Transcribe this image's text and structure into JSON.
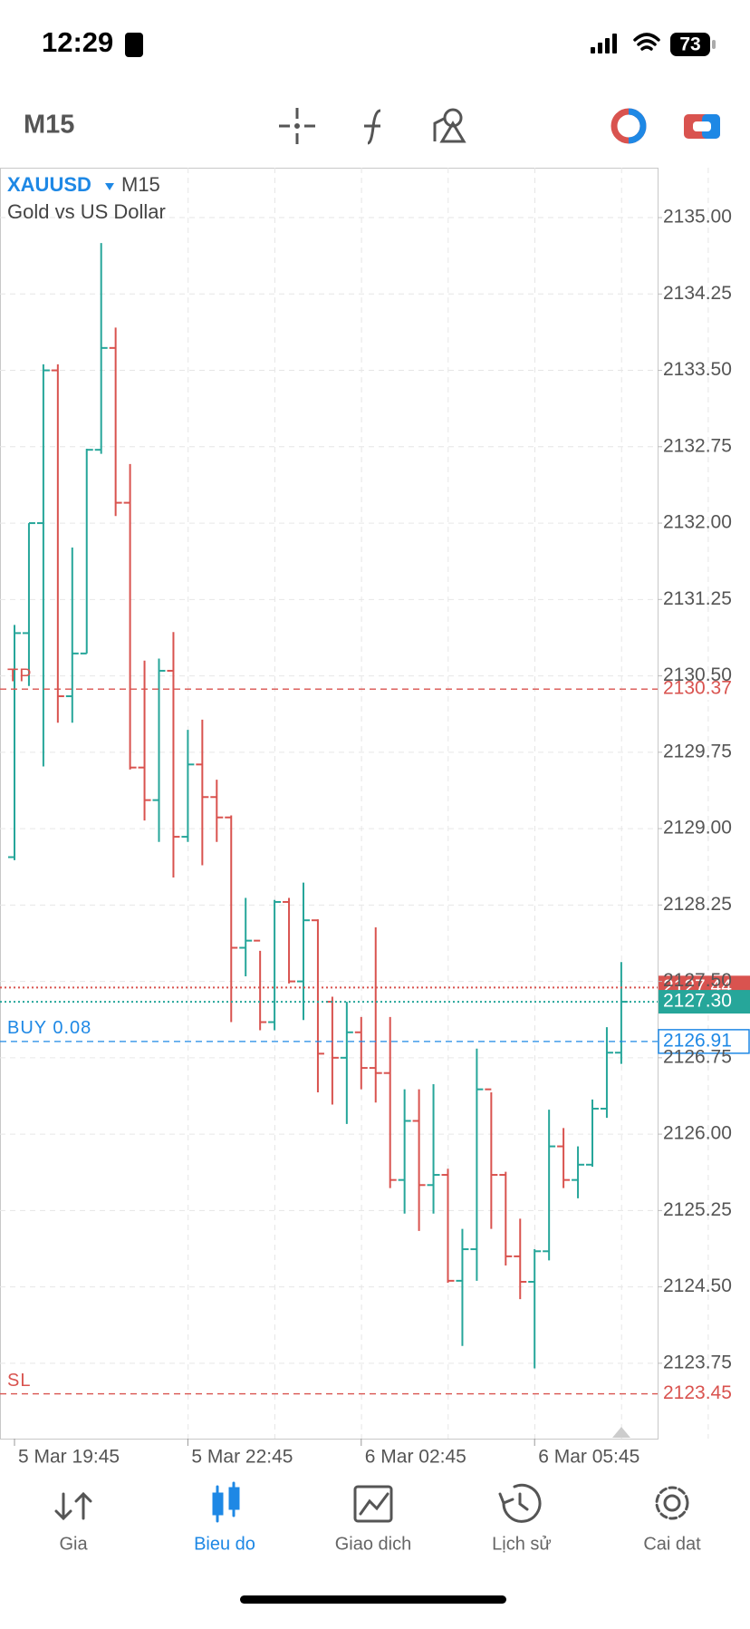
{
  "status_bar": {
    "time": "12:29",
    "battery": "73"
  },
  "toolbar": {
    "timeframe": "M15"
  },
  "chart_data": {
    "type": "ohlc",
    "symbol": "XAUUSD",
    "timeframe": "M15",
    "subtitle": "Gold vs US Dollar",
    "categories": [
      "5 Mar 19:45",
      null,
      null,
      null,
      null,
      null,
      null,
      null,
      null,
      null,
      null,
      null,
      "5 Mar 22:45",
      null,
      null,
      null,
      null,
      null,
      null,
      null,
      null,
      null,
      null,
      null,
      "6 Mar 02:45",
      null,
      null,
      null,
      null,
      null,
      null,
      null,
      null,
      null,
      null,
      null,
      "6 Mar 05:45",
      null,
      null,
      null,
      null,
      null,
      null
    ],
    "open": [
      2128.72,
      2130.92,
      2132.0,
      2133.5,
      2130.3,
      2130.72,
      2132.72,
      2133.72,
      2132.2,
      2129.6,
      2129.28,
      2130.55,
      2128.92,
      2129.63,
      2129.31,
      2129.11,
      2127.83,
      2127.9,
      2127.1,
      2128.28,
      2127.5,
      2128.1,
      2127.3,
      2126.75,
      2127.0,
      2126.65,
      2126.6,
      2125.55,
      2126.13,
      2125.5,
      2125.6,
      2124.56,
      2124.87,
      2126.44,
      2125.6,
      2124.8,
      2124.55,
      2124.85,
      2125.88,
      2125.55,
      2125.7,
      2126.25,
      2126.8
    ],
    "high": [
      2131.0,
      2132.0,
      2133.56,
      2133.56,
      2131.76,
      2132.73,
      2134.75,
      2133.92,
      2132.58,
      2130.65,
      2130.67,
      2130.93,
      2129.97,
      2130.07,
      2129.48,
      2129.13,
      2128.32,
      2127.8,
      2128.3,
      2128.32,
      2128.47,
      2128.11,
      2127.35,
      2127.3,
      2127.15,
      2128.03,
      2127.15,
      2126.44,
      2126.44,
      2126.49,
      2125.66,
      2125.07,
      2126.84,
      2126.41,
      2125.63,
      2125.17,
      2124.87,
      2126.24,
      2126.06,
      2125.88,
      2126.34,
      2127.05,
      2127.69
    ],
    "low": [
      2128.69,
      2130.4,
      2129.61,
      2130.04,
      2130.04,
      2130.72,
      2132.68,
      2132.07,
      2129.58,
      2129.08,
      2128.87,
      2128.52,
      2128.87,
      2128.64,
      2128.87,
      2127.1,
      2127.55,
      2127.02,
      2127.02,
      2127.48,
      2127.12,
      2126.41,
      2126.29,
      2126.1,
      2126.44,
      2126.31,
      2125.47,
      2125.22,
      2125.05,
      2125.22,
      2124.54,
      2123.92,
      2124.56,
      2125.07,
      2124.71,
      2124.38,
      2123.7,
      2124.76,
      2125.47,
      2125.37,
      2125.68,
      2126.16,
      2126.69
    ],
    "close": [
      2130.92,
      2132.0,
      2133.5,
      2130.3,
      2130.72,
      2132.72,
      2133.72,
      2132.2,
      2129.6,
      2129.28,
      2130.55,
      2128.92,
      2129.63,
      2129.31,
      2129.11,
      2127.83,
      2127.9,
      2127.1,
      2128.28,
      2127.5,
      2128.1,
      2126.79,
      2126.75,
      2127.0,
      2126.65,
      2126.6,
      2125.55,
      2126.13,
      2125.5,
      2125.6,
      2124.56,
      2124.87,
      2126.44,
      2125.6,
      2124.8,
      2124.55,
      2124.85,
      2125.88,
      2125.55,
      2125.7,
      2126.25,
      2126.8,
      2127.3
    ],
    "up_color": "#26a69a",
    "down_color": "#d9534f",
    "ylim": [
      2123.01,
      2135.49
    ],
    "yticks": [
      {
        "value": 2135,
        "label": "2135.00"
      },
      2134.25,
      {
        "value": 2133.5,
        "label": "2133.50"
      },
      2132.75,
      {
        "value": 2132,
        "label": "2132.00"
      },
      2131.25,
      {
        "value": 2130.5,
        "label": "2130.50"
      },
      2129.75,
      {
        "value": 2129,
        "label": "2129.00"
      },
      2128.25,
      {
        "value": 2127.5,
        "label": "2127.50"
      },
      2126.75,
      {
        "value": 2126,
        "label": "2126.00"
      },
      2125.25,
      {
        "value": 2124.5,
        "label": "2124.50"
      },
      2123.75
    ],
    "grid": true,
    "levels": [
      {
        "name": "TP",
        "value": 2130.37,
        "color": "#d9534f",
        "style": "dashed",
        "label_style": "plain"
      },
      {
        "value": 2127.44,
        "color": "#d9534f",
        "style": "dotted",
        "label_style": "filled"
      },
      {
        "value": 2127.3,
        "value_label": "2127.30",
        "color": "#26a69a",
        "style": "dotted",
        "label_style": "filled"
      },
      {
        "name": "BUY 0.08",
        "value": 2126.91,
        "color": "#1e88e5",
        "style": "dashed",
        "label_style": "boxed"
      },
      {
        "name": "SL",
        "value": 2123.45,
        "color": "#d9534f",
        "style": "dashed",
        "label_style": "plain"
      }
    ]
  },
  "tabs": [
    "Gia",
    "Bieu do",
    "Giao dich",
    "Lịch sử",
    "Cai dat"
  ]
}
